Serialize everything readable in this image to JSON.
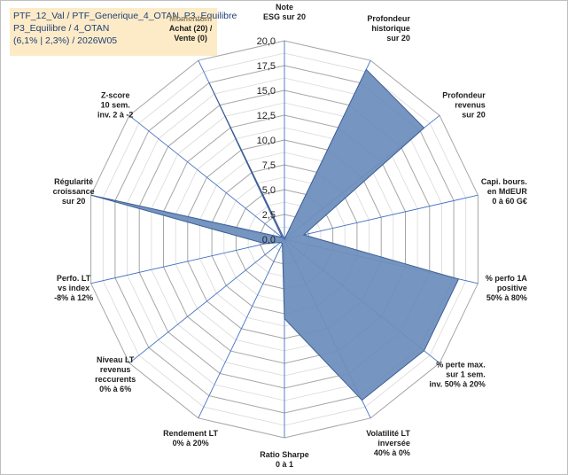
{
  "title": {
    "line1": "PTF_12_Val / PTF_Generique_4_OTAN_P3_Equilibre",
    "line2": "P3_Equilibre / 4_OTAN",
    "line3": "(6,1% | 2,3%) / 2026W05"
  },
  "chart_data": {
    "type": "radar",
    "title": "PTF_12_Val / PTF_Generique_4_OTAN_P3_Equilibre P3_Equilibre / 4_OTAN (6,1% | 2,3%) / 2026W05",
    "rmin": 0,
    "rmax": 20,
    "ticks": [
      "0,0",
      "2,5",
      "5,0",
      "7,5",
      "10,0",
      "12,5",
      "15,0",
      "17,5",
      "20,0"
    ],
    "tick_values": [
      0,
      2.5,
      5,
      7.5,
      10,
      12.5,
      15,
      17.5,
      20
    ],
    "fill_color": "#6f8fbd",
    "line_color": "#3d5f95",
    "axes": [
      {
        "label": [
          "Note",
          "ESG sur 20"
        ],
        "value": 0
      },
      {
        "label": [
          "Profondeur",
          "historique",
          "sur 20"
        ],
        "value": 19
      },
      {
        "label": [
          "Profondeur",
          "revenus",
          "sur 20"
        ],
        "value": 18
      },
      {
        "label": [
          "Capi. bours.",
          "en MdEUR",
          "0 à 60 G€"
        ],
        "value": 2
      },
      {
        "label": [
          "% perfo 1A",
          "positive",
          "50% à 80%"
        ],
        "value": 18
      },
      {
        "label": [
          "% perte max.",
          "sur 1 sem.",
          "inv. 50% à 20%"
        ],
        "value": 18
      },
      {
        "label": [
          "Volatilité LT",
          "inversée",
          "40% à 0%"
        ],
        "value": 18
      },
      {
        "label": [
          "Ratio Sharpe",
          "0 à 1"
        ],
        "value": 8
      },
      {
        "label": [
          "Rendement LT",
          "0% à 20%"
        ],
        "value": 0.5
      },
      {
        "label": [
          "Niveau LT",
          "revenus",
          "reccurents",
          "0% à 6%"
        ],
        "value": 0.5
      },
      {
        "label": [
          "Perfo. LT",
          "vs index",
          "-8% à 12%"
        ],
        "value": 2
      },
      {
        "label": [
          "Régularité",
          "croissance",
          "sur 20"
        ],
        "value": 20
      },
      {
        "label": [
          "Z-score",
          "10 sem.",
          "inv. 2 à -2"
        ],
        "value": 0.3
      },
      {
        "label": [
          "Momentum",
          "Achat (20) /",
          "Vente (0)"
        ],
        "value": 17.5
      }
    ]
  }
}
